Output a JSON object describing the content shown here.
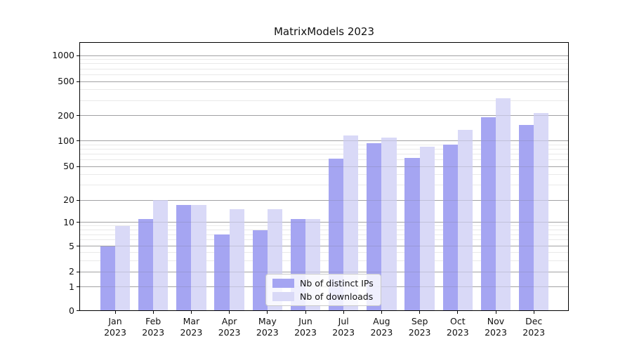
{
  "title": "MatrixModels 2023",
  "colors": {
    "ips_bar": "#a5a5f2",
    "downloads_bar": "#d9d9f7",
    "grid_major": "#b0b0b0",
    "grid_minor": "#e9e9e9",
    "axis": "#000000",
    "background": "#ffffff"
  },
  "legend": {
    "items": [
      {
        "label": "Nb of distinct IPs",
        "series": "ips"
      },
      {
        "label": "Nb of downloads",
        "series": "downloads"
      }
    ]
  },
  "chart_data": {
    "type": "bar",
    "title": "MatrixModels 2023",
    "categories": [
      "Jan 2023",
      "Feb 2023",
      "Mar 2023",
      "Apr 2023",
      "May 2023",
      "Jun 2023",
      "Jul 2023",
      "Aug 2023",
      "Sep 2023",
      "Oct 2023",
      "Nov 2023",
      "Dec 2023"
    ],
    "x_tick_line1": [
      "Jan",
      "Feb",
      "Mar",
      "Apr",
      "May",
      "Jun",
      "Jul",
      "Aug",
      "Sep",
      "Oct",
      "Nov",
      "Dec"
    ],
    "x_tick_line2": "2023",
    "series": [
      {
        "name": "Nb of distinct IPs",
        "color": "#a5a5f2",
        "values": [
          5,
          11,
          17,
          7,
          8,
          11,
          62,
          94,
          63,
          90,
          190,
          155
        ]
      },
      {
        "name": "Nb of downloads",
        "color": "#d9d9f7",
        "values": [
          9,
          20,
          17,
          15,
          15,
          11,
          115,
          110,
          85,
          135,
          320,
          215
        ]
      }
    ],
    "yscale": "symlog",
    "y_ticks": [
      0,
      1,
      2,
      5,
      10,
      20,
      50,
      100,
      200,
      500,
      1000
    ],
    "y_minor_gridlines": [
      3,
      4,
      6,
      7,
      8,
      9,
      30,
      40,
      60,
      70,
      80,
      90,
      300,
      400,
      600,
      700,
      800,
      900
    ],
    "ylim": [
      0,
      1430
    ],
    "grid": true,
    "legend_position": "inside lower-center"
  }
}
